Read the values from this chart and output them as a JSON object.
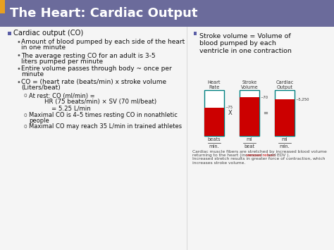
{
  "title": "The Heart: Cardiac Output",
  "title_bg_color": "#6b6b9b",
  "title_text_color": "#ffffff",
  "slide_bg_color": "#f2f2f2",
  "left_accent_top": "#e8a020",
  "left_accent_bot": "#6b6b9b",
  "bullet1_color": "#5b5ea6",
  "left_content": [
    {
      "type": "bullet1",
      "text": "Cardiac output (CO)"
    },
    {
      "type": "bullet2",
      "text": "Amount of blood pumped by each side of the heart\nin one minute"
    },
    {
      "type": "bullet2",
      "text": "The average resting CO for an adult is 3-5\nliters pumped per minute"
    },
    {
      "type": "bullet2",
      "text": "Entire volume passes through body ~ once per\nminute"
    },
    {
      "type": "bullet2",
      "text": "CO = (heart rate (beats/min) x stroke volume\n(Liters/beat)"
    },
    {
      "type": "bullet3",
      "text": "At rest: CO (ml/min) ="
    },
    {
      "type": "indent",
      "text": "HR (75 beats/min) × SV (70 ml/beat)"
    },
    {
      "type": "indent2",
      "text": "= 5.25 L/min"
    },
    {
      "type": "bullet3",
      "text": "Maximal CO is 4–5 times resting CO in nonathletic\npeople"
    },
    {
      "type": "bullet3",
      "text": "Maximal CO may reach 35 L/min in trained athletes"
    }
  ],
  "right_bullet": "Stroke volume = Volume of\nblood pumped by each\nventricle in one contraction",
  "bar_labels_top": [
    "Heart\nRate",
    "Stroke\nVolume",
    "Cardiac\nOutput"
  ],
  "bar_bottom_labels": [
    [
      "beats",
      "min."
    ],
    [
      "ml",
      "beat"
    ],
    [
      "ml",
      "min."
    ]
  ],
  "bar_fill_ratios": [
    0.62,
    0.84,
    0.8
  ],
  "bar_fill_color": "#cc0000",
  "bar_border_color": "#008080",
  "bar_empty_color": "#ffffff",
  "bar_value_labels": [
    "~75",
    "~70",
    "~5,250"
  ],
  "caption_parts": [
    {
      "text": "Cardiac muscle fibers are stretched by increased blood volume\nreturning to the heart (increased ",
      "color": "#444444"
    },
    {
      "text": "venous return",
      "color": "#cc0000"
    },
    {
      "text": " and EDV ).\nIncreased stretch results in greater force of contraction, which\nincreases stroke volume.",
      "color": "#444444"
    }
  ]
}
